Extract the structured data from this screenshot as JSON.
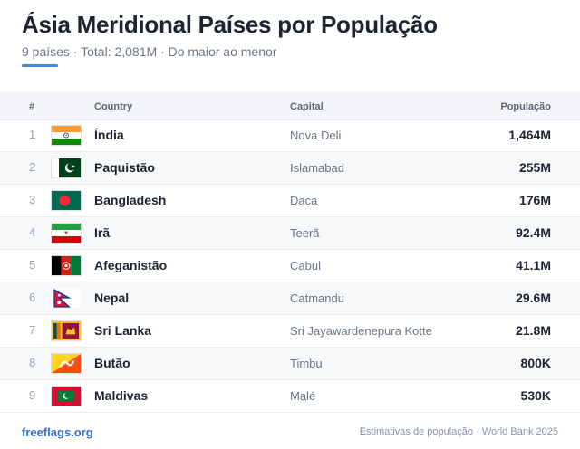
{
  "header": {
    "title": "Ásia Meridional Países por População",
    "subtitle": "9 países · Total: 2,081M · Do maior ao menor"
  },
  "table": {
    "columns": {
      "rank": "#",
      "country": "Country",
      "capital": "Capital",
      "population": "População"
    },
    "rows": [
      {
        "rank": "1",
        "country": "Índia",
        "capital": "Nova Deli",
        "population": "1,464M",
        "flag": "india-flag-icon"
      },
      {
        "rank": "2",
        "country": "Paquistão",
        "capital": "Islamabad",
        "population": "255M",
        "flag": "pakistan-flag-icon"
      },
      {
        "rank": "3",
        "country": "Bangladesh",
        "capital": "Daca",
        "population": "176M",
        "flag": "bangladesh-flag-icon"
      },
      {
        "rank": "4",
        "country": "Irã",
        "capital": "Teerã",
        "population": "92.4M",
        "flag": "iran-flag-icon"
      },
      {
        "rank": "5",
        "country": "Afeganistão",
        "capital": "Cabul",
        "population": "41.1M",
        "flag": "afghanistan-flag-icon"
      },
      {
        "rank": "6",
        "country": "Nepal",
        "capital": "Catmandu",
        "population": "29.6M",
        "flag": "nepal-flag-icon"
      },
      {
        "rank": "7",
        "country": "Sri Lanka",
        "capital": "Sri Jayawardenepura Kotte",
        "population": "21.8M",
        "flag": "sri-lanka-flag-icon"
      },
      {
        "rank": "8",
        "country": "Butão",
        "capital": "Timbu",
        "population": "800K",
        "flag": "bhutan-flag-icon"
      },
      {
        "rank": "9",
        "country": "Maldivas",
        "capital": "Malé",
        "population": "530K",
        "flag": "maldives-flag-icon"
      }
    ]
  },
  "footer": {
    "site": "freeflags.org",
    "source": "Estimativas de população · World Bank 2025"
  },
  "colors": {
    "accent": "#4a86d8",
    "link": "#3a6fc4",
    "header_bg": "#f3f5f8"
  }
}
